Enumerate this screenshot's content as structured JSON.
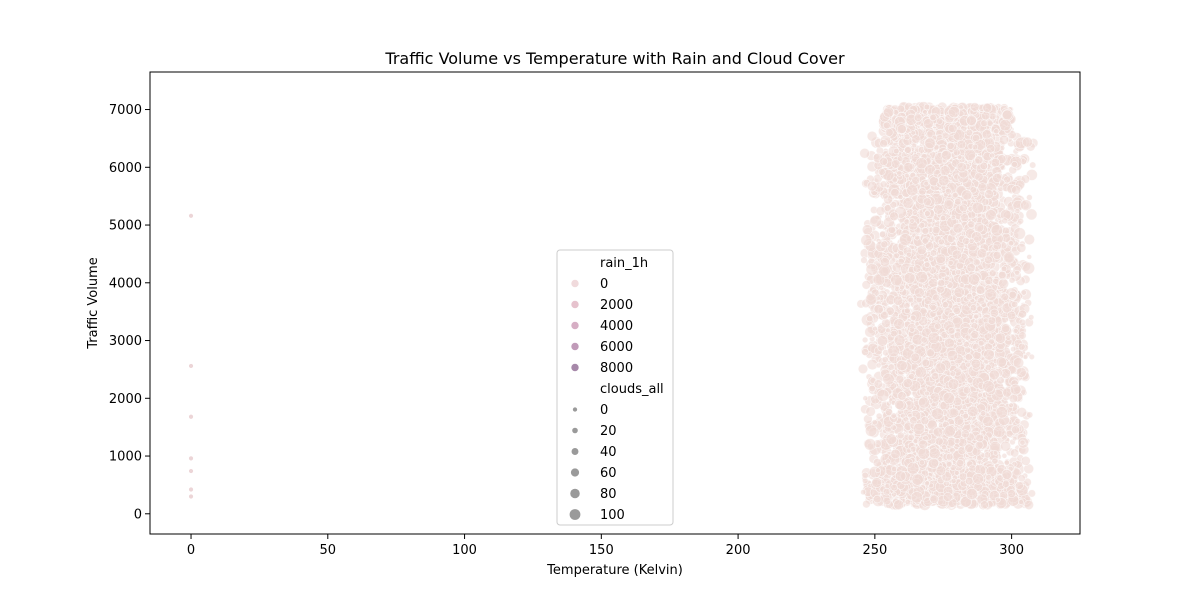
{
  "chart_data": {
    "type": "scatter",
    "title": "Traffic Volume vs Temperature with Rain and Cloud Cover",
    "xlabel": "Temperature (Kelvin)",
    "ylabel": "Traffic Volume",
    "xlim": [
      -15,
      325
    ],
    "ylim": [
      -350,
      7650
    ],
    "xticks": [
      "0",
      "50",
      "100",
      "150",
      "200",
      "250",
      "300"
    ],
    "yticks": [
      "0",
      "1000",
      "2000",
      "3000",
      "4000",
      "5000",
      "6000",
      "7000"
    ],
    "grid": false,
    "legend_position": "lower center",
    "hue_legend": {
      "title": "rain_1h",
      "entries": [
        {
          "label": "0",
          "color": "#f0dadc"
        },
        {
          "label": "2000",
          "color": "#e6c2cd"
        },
        {
          "label": "4000",
          "color": "#d6aec4"
        },
        {
          "label": "6000",
          "color": "#c09ab8"
        },
        {
          "label": "8000",
          "color": "#a688a9"
        }
      ]
    },
    "size_legend": {
      "title": "clouds_all",
      "color": "#9a9a9a",
      "entries": [
        {
          "label": "0",
          "value": 0
        },
        {
          "label": "20",
          "value": 20
        },
        {
          "label": "40",
          "value": 40
        },
        {
          "label": "60",
          "value": 60
        },
        {
          "label": "80",
          "value": 80
        },
        {
          "label": "100",
          "value": 100
        }
      ]
    },
    "outlier_points": [
      {
        "x": 0,
        "y": 5160,
        "clouds_all": 0
      },
      {
        "x": 0,
        "y": 2560,
        "clouds_all": 0
      },
      {
        "x": 0,
        "y": 1680,
        "clouds_all": 0
      },
      {
        "x": 0,
        "y": 960,
        "clouds_all": 0
      },
      {
        "x": 0,
        "y": 740,
        "clouds_all": 0
      },
      {
        "x": 0,
        "y": 420,
        "clouds_all": 0
      },
      {
        "x": 0,
        "y": 300,
        "clouds_all": 0
      }
    ],
    "main_cluster": {
      "x_range": [
        243,
        310
      ],
      "y_range": [
        -50,
        7300
      ],
      "color": "#f0dad6"
    }
  }
}
